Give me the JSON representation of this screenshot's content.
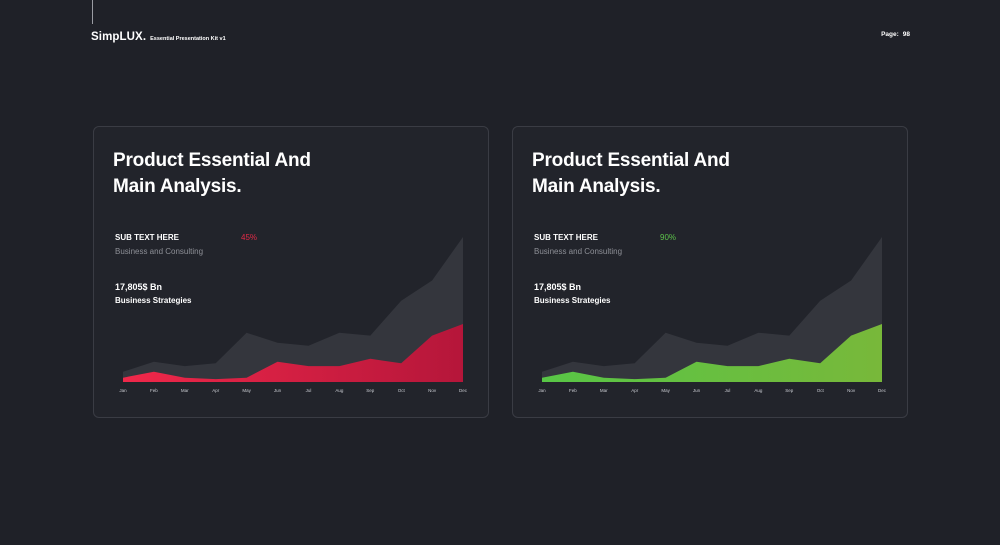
{
  "header": {
    "brand_name": "SimpLUX.",
    "brand_subtitle": "Essential Presentation Kit v1",
    "page_label": "Page:",
    "page_number": "98"
  },
  "cards": [
    {
      "title_line1": "Product Essential And",
      "title_line2": "Main Analysis.",
      "sub_label": "SUB TEXT HERE",
      "percent": "45%",
      "sub_caption": "Business and Consulting",
      "stat_value": "17,805$ Bn",
      "stat_caption": "Business Strategies",
      "accent_colors": [
        "#f0284a",
        "#b5163a"
      ]
    },
    {
      "title_line1": "Product Essential And",
      "title_line2": "Main Analysis.",
      "sub_label": "SUB TEXT HERE",
      "percent": "90%",
      "sub_caption": "Business and Consulting",
      "stat_value": "17,805$ Bn",
      "stat_caption": "Business Strategies",
      "accent_colors": [
        "#58c646",
        "#78b83a"
      ]
    }
  ],
  "chart_data": [
    {
      "type": "area",
      "categories": [
        "Jan",
        "Feb",
        "Mar",
        "Apr",
        "May",
        "Jun",
        "Jul",
        "Aug",
        "Sep",
        "Oct",
        "Nov",
        "Dec"
      ],
      "ylim": [
        0,
        100
      ],
      "series": [
        {
          "values": [
            7,
            14,
            11,
            13,
            34,
            27,
            25,
            34,
            32,
            56,
            70,
            100
          ],
          "color": "#34363d"
        },
        {
          "values": [
            3,
            7,
            3,
            2,
            3,
            14,
            11,
            11,
            16,
            13,
            32,
            40
          ],
          "color": "#e32a47"
        }
      ]
    },
    {
      "type": "area",
      "categories": [
        "Jan",
        "Feb",
        "Mar",
        "Apr",
        "May",
        "Jun",
        "Jul",
        "Aug",
        "Sep",
        "Oct",
        "Nov",
        "Dec"
      ],
      "ylim": [
        0,
        100
      ],
      "series": [
        {
          "values": [
            7,
            14,
            11,
            13,
            34,
            27,
            25,
            34,
            32,
            56,
            70,
            100
          ],
          "color": "#34363d"
        },
        {
          "values": [
            3,
            7,
            3,
            2,
            3,
            14,
            11,
            11,
            16,
            13,
            32,
            40
          ],
          "color": "#5cc24a"
        }
      ]
    }
  ]
}
